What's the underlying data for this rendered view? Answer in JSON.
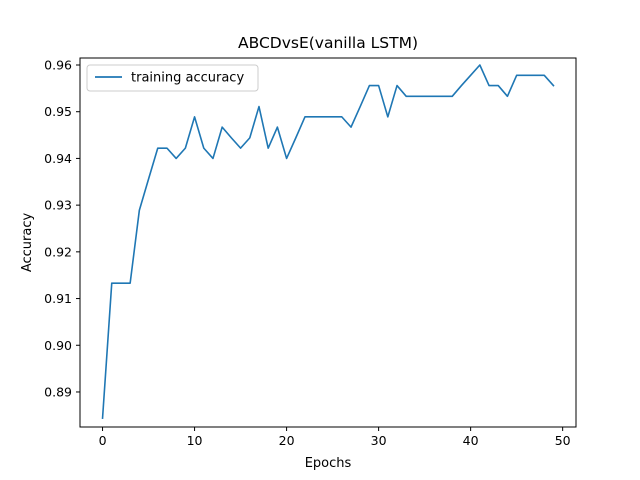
{
  "chart_data": {
    "type": "line",
    "title": "ABCDvsE(vanilla LSTM)",
    "xlabel": "Epochs",
    "ylabel": "Accuracy",
    "xlim": [
      -2.45,
      51.45
    ],
    "ylim": [
      0.8825,
      0.9615
    ],
    "xticks": [
      0,
      10,
      20,
      30,
      40,
      50
    ],
    "yticks": [
      0.89,
      0.9,
      0.91,
      0.92,
      0.93,
      0.94,
      0.95,
      0.96
    ],
    "ytick_labels": [
      "0.89",
      "0.90",
      "0.91",
      "0.92",
      "0.93",
      "0.94",
      "0.95",
      "0.96"
    ],
    "grid": false,
    "legend_position": "top-left",
    "series": [
      {
        "name": "training accuracy",
        "color": "#1f77b4",
        "x": [
          0,
          1,
          2,
          3,
          4,
          5,
          6,
          7,
          8,
          9,
          10,
          11,
          12,
          13,
          14,
          15,
          16,
          17,
          18,
          19,
          20,
          21,
          22,
          23,
          24,
          25,
          26,
          27,
          28,
          29,
          30,
          31,
          32,
          33,
          34,
          35,
          36,
          37,
          38,
          39,
          40,
          41,
          42,
          43,
          44,
          45,
          46,
          47,
          48,
          49
        ],
        "values": [
          0.8844,
          0.9133,
          0.9133,
          0.9133,
          0.9289,
          0.9356,
          0.9422,
          0.9422,
          0.94,
          0.9422,
          0.9489,
          0.9422,
          0.94,
          0.9467,
          0.9444,
          0.9422,
          0.9444,
          0.9511,
          0.9422,
          0.9467,
          0.94,
          0.9444,
          0.9489,
          0.9489,
          0.9489,
          0.9489,
          0.9489,
          0.9467,
          0.9511,
          0.9556,
          0.9556,
          0.9489,
          0.9556,
          0.9533,
          0.9533,
          0.9533,
          0.9533,
          0.9533,
          0.9533,
          0.9556,
          0.9578,
          0.96,
          0.9556,
          0.9556,
          0.9533,
          0.9578,
          0.9578,
          0.9578,
          0.9578,
          0.9556
        ]
      }
    ]
  }
}
